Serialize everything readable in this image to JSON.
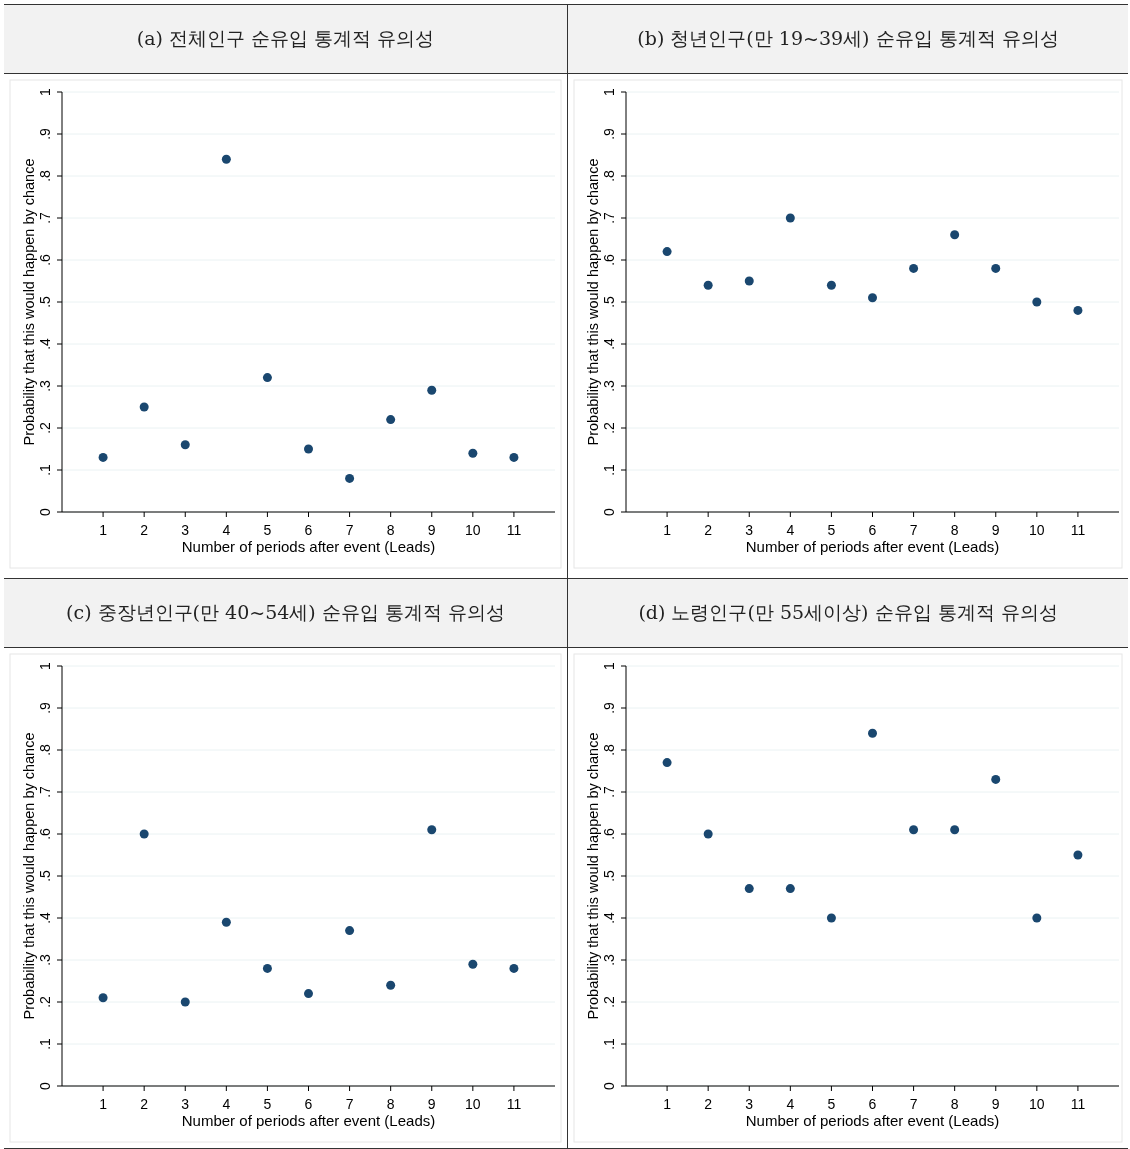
{
  "chart_data": [
    {
      "type": "scatter",
      "title": "(a) 전체인구 순유입 통계적 유의성",
      "xlabel": "Number of periods after event (Leads)",
      "ylabel": "Probability that this would happen by chance",
      "x": [
        1,
        2,
        3,
        4,
        5,
        6,
        7,
        8,
        9,
        10,
        11
      ],
      "xlim": [
        0,
        12
      ],
      "xticks": [
        1,
        2,
        3,
        4,
        5,
        6,
        7,
        8,
        9,
        10,
        11
      ],
      "ylim": [
        0,
        1
      ],
      "yticks": [
        {
          "value": 0,
          "label": "0"
        },
        {
          "value": 0.1,
          "label": ".1"
        },
        {
          "value": 0.2,
          "label": ".2"
        },
        {
          "value": 0.3,
          "label": ".3"
        },
        {
          "value": 0.4,
          "label": ".4"
        },
        {
          "value": 0.5,
          "label": ".5"
        },
        {
          "value": 0.6,
          "label": ".6"
        },
        {
          "value": 0.7,
          "label": ".7"
        },
        {
          "value": 0.8,
          "label": ".8"
        },
        {
          "value": 0.9,
          "label": ".9"
        },
        {
          "value": 1,
          "label": "1"
        }
      ],
      "grid": "y",
      "marker": "circle",
      "series": [
        {
          "color": "#1a476f",
          "values": [
            0.13,
            0.25,
            0.16,
            0.84,
            0.32,
            0.15,
            0.08,
            0.22,
            0.29,
            0.14,
            0.13
          ]
        }
      ]
    },
    {
      "type": "scatter",
      "title": "(b) 청년인구(만 19~39세) 순유입 통계적 유의성",
      "xlabel": "Number of periods after event (Leads)",
      "ylabel": "Probability that this would happen by chance",
      "x": [
        1,
        2,
        3,
        4,
        5,
        6,
        7,
        8,
        9,
        10,
        11
      ],
      "xlim": [
        0,
        12
      ],
      "xticks": [
        1,
        2,
        3,
        4,
        5,
        6,
        7,
        8,
        9,
        10,
        11
      ],
      "ylim": [
        0,
        1
      ],
      "yticks": [
        {
          "value": 0,
          "label": "0"
        },
        {
          "value": 0.1,
          "label": ".1"
        },
        {
          "value": 0.2,
          "label": ".2"
        },
        {
          "value": 0.3,
          "label": ".3"
        },
        {
          "value": 0.4,
          "label": ".4"
        },
        {
          "value": 0.5,
          "label": ".5"
        },
        {
          "value": 0.6,
          "label": ".6"
        },
        {
          "value": 0.7,
          "label": ".7"
        },
        {
          "value": 0.8,
          "label": ".8"
        },
        {
          "value": 0.9,
          "label": ".9"
        },
        {
          "value": 1,
          "label": "1"
        }
      ],
      "grid": "y",
      "marker": "circle",
      "series": [
        {
          "color": "#1a476f",
          "values": [
            0.62,
            0.54,
            0.55,
            0.7,
            0.54,
            0.51,
            0.58,
            0.66,
            0.58,
            0.5,
            0.48
          ]
        }
      ]
    },
    {
      "type": "scatter",
      "title": "(c) 중장년인구(만 40~54세) 순유입 통계적 유의성",
      "xlabel": "Number of periods after event (Leads)",
      "ylabel": "Probability that this would happen by chance",
      "x": [
        1,
        2,
        3,
        4,
        5,
        6,
        7,
        8,
        9,
        10,
        11
      ],
      "xlim": [
        0,
        12
      ],
      "xticks": [
        1,
        2,
        3,
        4,
        5,
        6,
        7,
        8,
        9,
        10,
        11
      ],
      "ylim": [
        0,
        1
      ],
      "yticks": [
        {
          "value": 0,
          "label": "0"
        },
        {
          "value": 0.1,
          "label": ".1"
        },
        {
          "value": 0.2,
          "label": ".2"
        },
        {
          "value": 0.3,
          "label": ".3"
        },
        {
          "value": 0.4,
          "label": ".4"
        },
        {
          "value": 0.5,
          "label": ".5"
        },
        {
          "value": 0.6,
          "label": ".6"
        },
        {
          "value": 0.7,
          "label": ".7"
        },
        {
          "value": 0.8,
          "label": ".8"
        },
        {
          "value": 0.9,
          "label": ".9"
        },
        {
          "value": 1,
          "label": "1"
        }
      ],
      "grid": "y",
      "marker": "circle",
      "series": [
        {
          "color": "#1a476f",
          "values": [
            0.21,
            0.6,
            0.2,
            0.39,
            0.28,
            0.22,
            0.37,
            0.24,
            0.61,
            0.29,
            0.28
          ]
        }
      ]
    },
    {
      "type": "scatter",
      "title": "(d) 노령인구(만 55세이상) 순유입 통계적 유의성",
      "xlabel": "Number of periods after event (Leads)",
      "ylabel": "Probability that this would happen by chance",
      "x": [
        1,
        2,
        3,
        4,
        5,
        6,
        7,
        8,
        9,
        10,
        11
      ],
      "xlim": [
        0,
        12
      ],
      "xticks": [
        1,
        2,
        3,
        4,
        5,
        6,
        7,
        8,
        9,
        10,
        11
      ],
      "ylim": [
        0,
        1
      ],
      "yticks": [
        {
          "value": 0,
          "label": "0"
        },
        {
          "value": 0.1,
          "label": ".1"
        },
        {
          "value": 0.2,
          "label": ".2"
        },
        {
          "value": 0.3,
          "label": ".3"
        },
        {
          "value": 0.4,
          "label": ".4"
        },
        {
          "value": 0.5,
          "label": ".5"
        },
        {
          "value": 0.6,
          "label": ".6"
        },
        {
          "value": 0.7,
          "label": ".7"
        },
        {
          "value": 0.8,
          "label": ".8"
        },
        {
          "value": 0.9,
          "label": ".9"
        },
        {
          "value": 1,
          "label": "1"
        }
      ],
      "grid": "y",
      "marker": "circle",
      "series": [
        {
          "color": "#1a476f",
          "values": [
            0.77,
            0.6,
            0.47,
            0.47,
            0.4,
            0.84,
            0.61,
            0.61,
            0.73,
            0.4,
            0.55
          ]
        }
      ]
    }
  ]
}
